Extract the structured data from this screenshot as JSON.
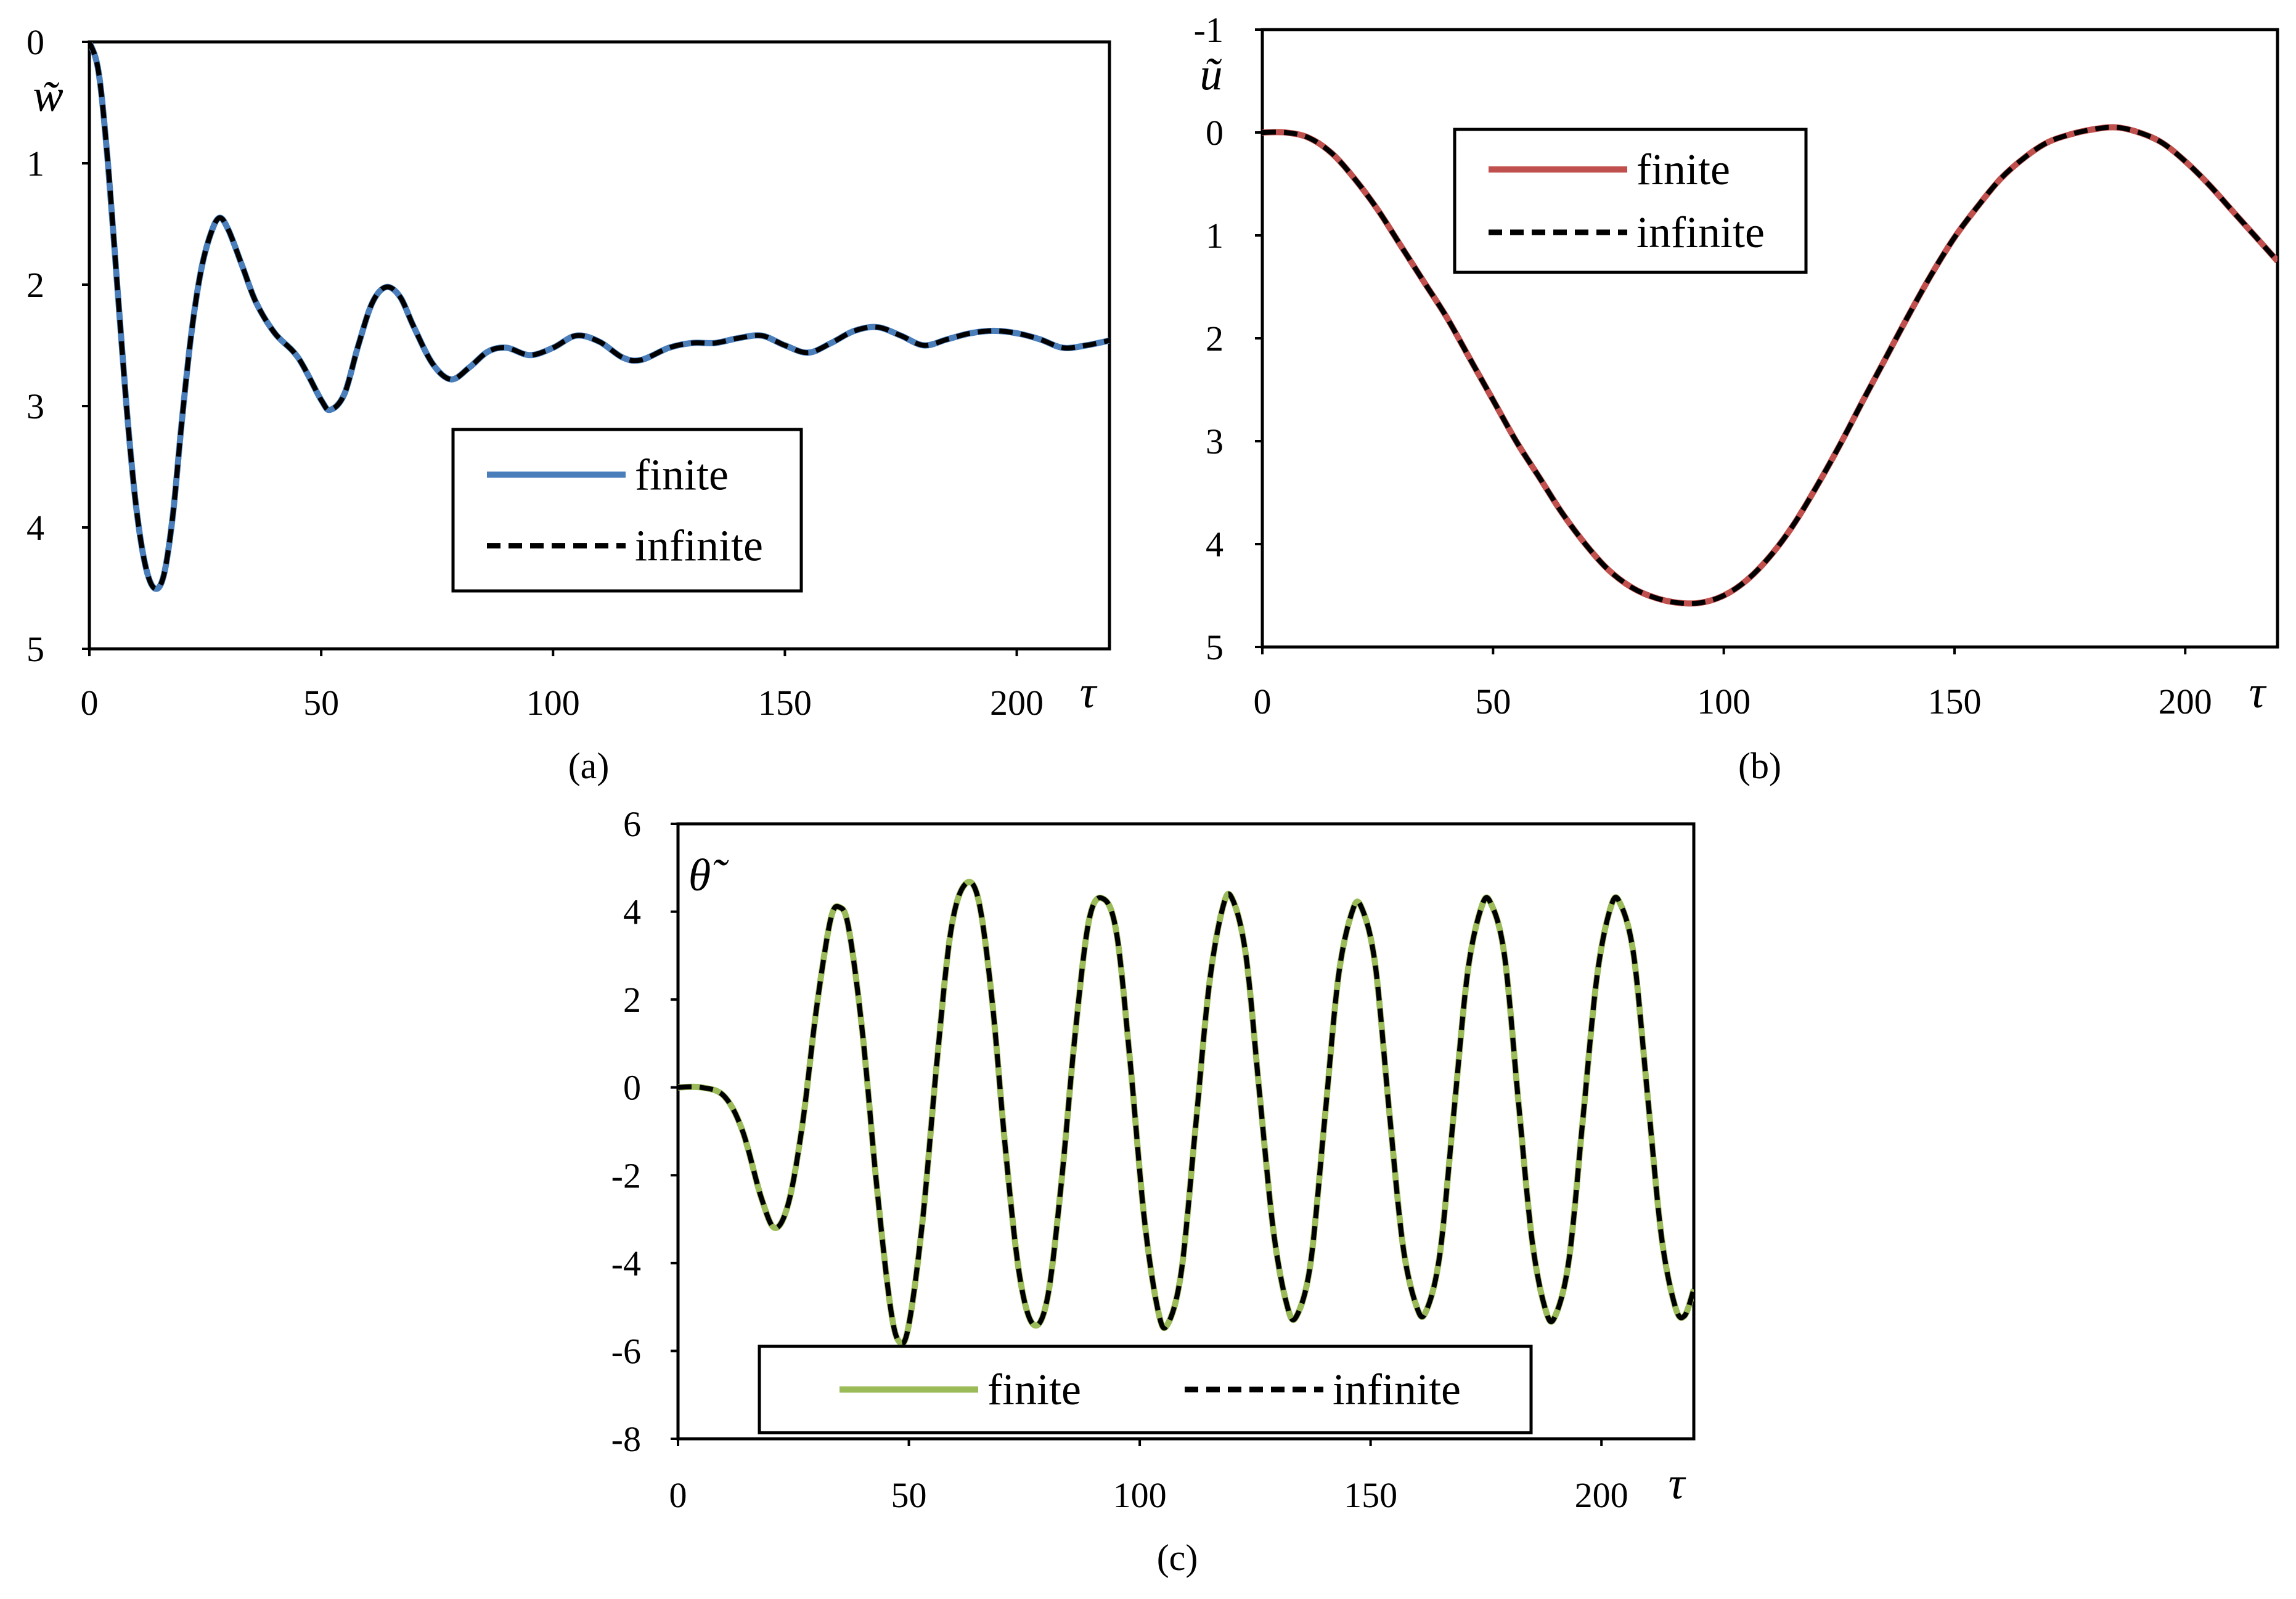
{
  "chart_data": [
    {
      "id": "a",
      "type": "line",
      "panel_label": "(a)",
      "xlabel": "τ",
      "ylabel": "w̃",
      "xlim": [
        0,
        220
      ],
      "ylim": [
        0,
        5
      ],
      "y_inverted": true,
      "xticks": [
        "0",
        "50",
        "100",
        "150",
        "200"
      ],
      "xtick_values": [
        0,
        50,
        100,
        150,
        200
      ],
      "yticks": [
        "0",
        "1",
        "2",
        "3",
        "4",
        "5"
      ],
      "ytick_values": [
        0,
        1,
        2,
        3,
        4,
        5
      ],
      "grid": false,
      "legend": {
        "position": "center-right",
        "layout": "vertical"
      },
      "series": [
        {
          "name": "finite",
          "color": "#4a7ebb",
          "style": "solid"
        },
        {
          "name": "infinite",
          "color": "#000000",
          "style": "dashed"
        }
      ],
      "points": [
        [
          0,
          0.0
        ],
        [
          2,
          0.25
        ],
        [
          4,
          1.0
        ],
        [
          6,
          2.0
        ],
        [
          8,
          3.0
        ],
        [
          10,
          3.8
        ],
        [
          12,
          4.3
        ],
        [
          14,
          4.5
        ],
        [
          16,
          4.4
        ],
        [
          18,
          3.9
        ],
        [
          20,
          3.1
        ],
        [
          22,
          2.4
        ],
        [
          24,
          1.9
        ],
        [
          26,
          1.6
        ],
        [
          28,
          1.45
        ],
        [
          30,
          1.55
        ],
        [
          33,
          1.85
        ],
        [
          36,
          2.15
        ],
        [
          40,
          2.4
        ],
        [
          45,
          2.6
        ],
        [
          50,
          2.95
        ],
        [
          52,
          3.03
        ],
        [
          55,
          2.9
        ],
        [
          58,
          2.5
        ],
        [
          61,
          2.15
        ],
        [
          64,
          2.02
        ],
        [
          67,
          2.1
        ],
        [
          70,
          2.35
        ],
        [
          74,
          2.65
        ],
        [
          78,
          2.78
        ],
        [
          82,
          2.68
        ],
        [
          86,
          2.55
        ],
        [
          90,
          2.52
        ],
        [
          95,
          2.58
        ],
        [
          100,
          2.52
        ],
        [
          105,
          2.42
        ],
        [
          110,
          2.47
        ],
        [
          115,
          2.6
        ],
        [
          119,
          2.62
        ],
        [
          125,
          2.52
        ],
        [
          130,
          2.48
        ],
        [
          135,
          2.48
        ],
        [
          140,
          2.44
        ],
        [
          145,
          2.42
        ],
        [
          150,
          2.5
        ],
        [
          155,
          2.56
        ],
        [
          160,
          2.48
        ],
        [
          165,
          2.38
        ],
        [
          170,
          2.35
        ],
        [
          175,
          2.42
        ],
        [
          180,
          2.5
        ],
        [
          185,
          2.45
        ],
        [
          190,
          2.4
        ],
        [
          195,
          2.38
        ],
        [
          200,
          2.4
        ],
        [
          205,
          2.45
        ],
        [
          210,
          2.52
        ],
        [
          215,
          2.5
        ],
        [
          220,
          2.46
        ]
      ]
    },
    {
      "id": "b",
      "type": "line",
      "panel_label": "(b)",
      "xlabel": "τ",
      "ylabel": "ũ",
      "xlim": [
        0,
        220
      ],
      "ylim": [
        -1,
        5
      ],
      "y_inverted": true,
      "xticks": [
        "0",
        "50",
        "100",
        "150",
        "200"
      ],
      "xtick_values": [
        0,
        50,
        100,
        150,
        200
      ],
      "yticks": [
        "-1",
        "0",
        "1",
        "2",
        "3",
        "4",
        "5"
      ],
      "ytick_values": [
        -1,
        0,
        1,
        2,
        3,
        4,
        5
      ],
      "grid": false,
      "legend": {
        "position": "top-center",
        "layout": "vertical"
      },
      "series": [
        {
          "name": "finite",
          "color": "#c0504d",
          "style": "solid"
        },
        {
          "name": "infinite",
          "color": "#000000",
          "style": "dashed"
        }
      ],
      "points": [
        [
          0,
          0.0
        ],
        [
          5,
          0.0
        ],
        [
          10,
          0.05
        ],
        [
          15,
          0.2
        ],
        [
          20,
          0.45
        ],
        [
          25,
          0.75
        ],
        [
          30,
          1.1
        ],
        [
          35,
          1.45
        ],
        [
          40,
          1.8
        ],
        [
          45,
          2.2
        ],
        [
          50,
          2.6
        ],
        [
          55,
          3.0
        ],
        [
          60,
          3.35
        ],
        [
          65,
          3.7
        ],
        [
          70,
          4.0
        ],
        [
          75,
          4.25
        ],
        [
          80,
          4.42
        ],
        [
          85,
          4.52
        ],
        [
          90,
          4.57
        ],
        [
          95,
          4.57
        ],
        [
          100,
          4.5
        ],
        [
          105,
          4.35
        ],
        [
          110,
          4.12
        ],
        [
          115,
          3.82
        ],
        [
          120,
          3.45
        ],
        [
          125,
          3.05
        ],
        [
          130,
          2.62
        ],
        [
          135,
          2.2
        ],
        [
          140,
          1.78
        ],
        [
          145,
          1.38
        ],
        [
          150,
          1.02
        ],
        [
          155,
          0.72
        ],
        [
          160,
          0.45
        ],
        [
          165,
          0.25
        ],
        [
          170,
          0.1
        ],
        [
          175,
          0.02
        ],
        [
          180,
          -0.03
        ],
        [
          185,
          -0.05
        ],
        [
          190,
          0.0
        ],
        [
          195,
          0.1
        ],
        [
          200,
          0.28
        ],
        [
          205,
          0.5
        ],
        [
          210,
          0.75
        ],
        [
          215,
          1.0
        ],
        [
          220,
          1.25
        ]
      ]
    },
    {
      "id": "c",
      "type": "line",
      "panel_label": "(c)",
      "xlabel": "τ",
      "ylabel": "θ̃",
      "xlim": [
        0,
        220
      ],
      "ylim": [
        -8,
        6
      ],
      "y_inverted": false,
      "xticks": [
        "0",
        "50",
        "100",
        "150",
        "200"
      ],
      "xtick_values": [
        0,
        50,
        100,
        150,
        200
      ],
      "yticks": [
        "6",
        "4",
        "2",
        "0",
        "-2",
        "-4",
        "-6",
        "-8"
      ],
      "ytick_values": [
        6,
        4,
        2,
        0,
        -2,
        -4,
        -6,
        -8
      ],
      "grid": false,
      "legend": {
        "position": "bottom-center",
        "layout": "horizontal"
      },
      "series": [
        {
          "name": "finite",
          "color": "#9bbb59",
          "style": "solid"
        },
        {
          "name": "infinite",
          "color": "#000000",
          "style": "dashed"
        }
      ],
      "points": [
        [
          0,
          0.0
        ],
        [
          5,
          0.0
        ],
        [
          10,
          -0.2
        ],
        [
          14,
          -1.0
        ],
        [
          18,
          -2.5
        ],
        [
          21,
          -3.2
        ],
        [
          24,
          -2.6
        ],
        [
          27,
          -0.8
        ],
        [
          30,
          1.8
        ],
        [
          33,
          3.8
        ],
        [
          35,
          4.1
        ],
        [
          37,
          3.6
        ],
        [
          40,
          1.2
        ],
        [
          43,
          -2.2
        ],
        [
          46,
          -5.0
        ],
        [
          48,
          -5.8
        ],
        [
          50,
          -5.4
        ],
        [
          53,
          -3.0
        ],
        [
          56,
          0.5
        ],
        [
          59,
          3.5
        ],
        [
          62,
          4.6
        ],
        [
          65,
          4.3
        ],
        [
          68,
          2.0
        ],
        [
          71,
          -1.5
        ],
        [
          74,
          -4.3
        ],
        [
          77,
          -5.4
        ],
        [
          80,
          -4.8
        ],
        [
          83,
          -2.2
        ],
        [
          86,
          1.2
        ],
        [
          89,
          3.8
        ],
        [
          92,
          4.3
        ],
        [
          95,
          3.5
        ],
        [
          98,
          0.5
        ],
        [
          101,
          -3.0
        ],
        [
          104,
          -5.1
        ],
        [
          106,
          -5.4
        ],
        [
          109,
          -4.2
        ],
        [
          112,
          -1.0
        ],
        [
          115,
          2.3
        ],
        [
          118,
          4.1
        ],
        [
          120,
          4.3
        ],
        [
          123,
          3.0
        ],
        [
          126,
          -0.2
        ],
        [
          129,
          -3.3
        ],
        [
          132,
          -5.0
        ],
        [
          134,
          -5.2
        ],
        [
          137,
          -4.0
        ],
        [
          140,
          -0.8
        ],
        [
          143,
          2.5
        ],
        [
          146,
          4.0
        ],
        [
          148,
          4.1
        ],
        [
          151,
          2.8
        ],
        [
          154,
          -0.5
        ],
        [
          157,
          -3.6
        ],
        [
          160,
          -5.0
        ],
        [
          162,
          -5.1
        ],
        [
          165,
          -3.8
        ],
        [
          168,
          -0.6
        ],
        [
          171,
          2.6
        ],
        [
          174,
          4.1
        ],
        [
          176,
          4.2
        ],
        [
          179,
          3.0
        ],
        [
          182,
          -0.3
        ],
        [
          185,
          -3.5
        ],
        [
          188,
          -5.1
        ],
        [
          190,
          -5.2
        ],
        [
          193,
          -3.9
        ],
        [
          196,
          -0.7
        ],
        [
          199,
          2.5
        ],
        [
          202,
          4.1
        ],
        [
          204,
          4.2
        ],
        [
          207,
          3.0
        ],
        [
          210,
          -0.2
        ],
        [
          213,
          -3.4
        ],
        [
          216,
          -5.0
        ],
        [
          218,
          -5.2
        ],
        [
          220,
          -4.6
        ]
      ]
    }
  ]
}
